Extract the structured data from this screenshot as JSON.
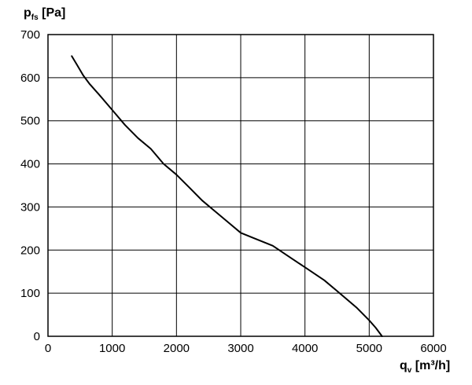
{
  "chart_data": {
    "type": "line",
    "title": "",
    "xlabel": {
      "main": "q",
      "sub": "v",
      "unit": " [m³/h]"
    },
    "ylabel": {
      "main": "p",
      "sub": "fs",
      "unit": " [Pa]"
    },
    "xlim": [
      0,
      6000
    ],
    "ylim": [
      0,
      700
    ],
    "xticks": [
      0,
      1000,
      2000,
      3000,
      4000,
      5000,
      6000
    ],
    "yticks": [
      0,
      100,
      200,
      300,
      400,
      500,
      600,
      700
    ],
    "grid": true,
    "legend": "none",
    "series": [
      {
        "color": "#000000",
        "x": [
          370,
          450,
          550,
          650,
          800,
          1000,
          1200,
          1400,
          1600,
          1800,
          2000,
          2200,
          2400,
          2600,
          2800,
          3000,
          3200,
          3500,
          3800,
          4000,
          4300,
          4500,
          4800,
          5000,
          5100,
          5200
        ],
        "y": [
          650,
          630,
          605,
          585,
          560,
          525,
          490,
          460,
          435,
          400,
          375,
          345,
          315,
          290,
          265,
          240,
          228,
          210,
          180,
          160,
          130,
          105,
          67,
          37,
          20,
          0
        ]
      }
    ]
  }
}
